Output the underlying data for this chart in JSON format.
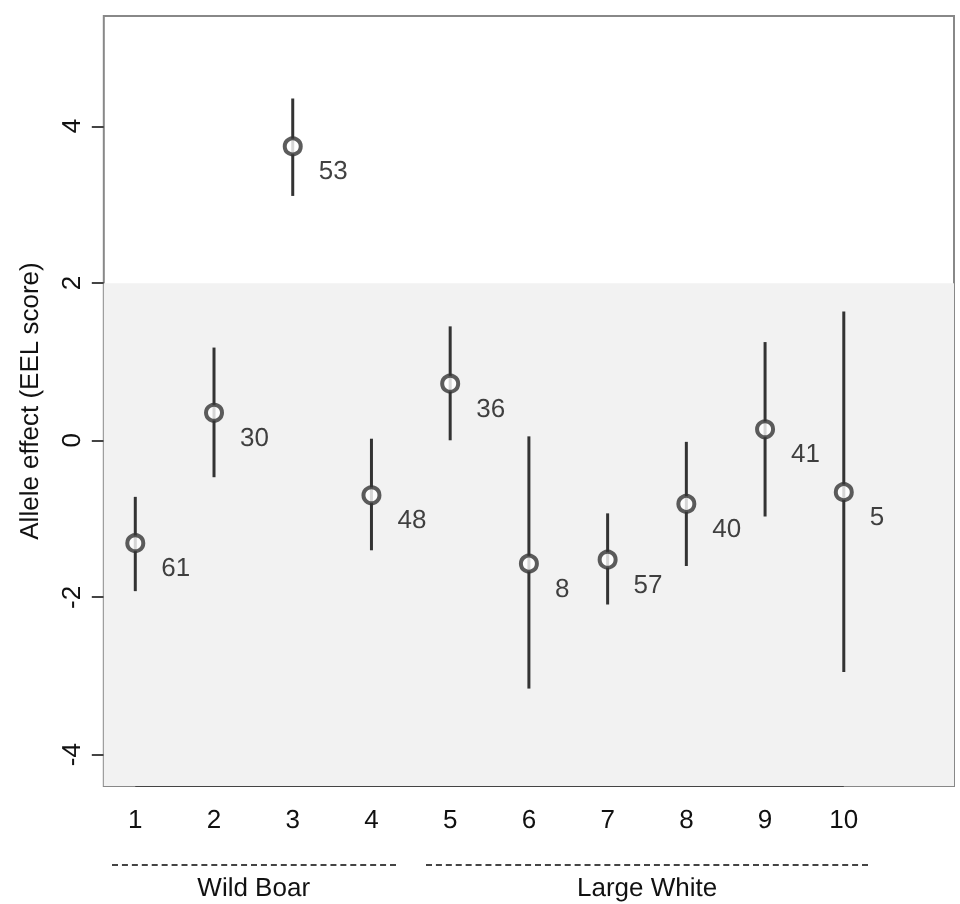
{
  "chart_data": {
    "type": "scatter",
    "ylabel": "Allele effect (EEL score)",
    "x": [
      1,
      2,
      3,
      4,
      5,
      6,
      7,
      8,
      9,
      10
    ],
    "values": [
      -1.31,
      0.35,
      3.74,
      -0.7,
      0.72,
      -1.57,
      -1.52,
      -0.81,
      0.14,
      -0.66
    ],
    "errors": [
      [
        -1.92,
        -0.72
      ],
      [
        -0.47,
        1.18
      ],
      [
        3.11,
        4.35
      ],
      [
        -1.4,
        0.02
      ],
      [
        0,
        1.45
      ],
      [
        -3.16,
        0.05
      ],
      [
        -2.09,
        -0.93
      ],
      [
        -1.6,
        -0.02
      ],
      [
        -0.97,
        1.25
      ],
      [
        -2.95,
        1.64
      ]
    ],
    "color": "#333333",
    "marker": "circle",
    "xlim": [
      0.6,
      11.4
    ],
    "xticks": [
      1,
      2,
      3,
      4,
      5,
      6,
      7,
      8,
      9,
      10
    ],
    "ylim": [
      -4.4,
      5.4
    ],
    "yticks": [
      -4,
      -2,
      0,
      2,
      4
    ],
    "bands": [
      {
        "axis": "y",
        "from": -4.4,
        "to": 2,
        "color": "#f2f2f2"
      }
    ],
    "annotations": [
      {
        "text": "61",
        "x": 1,
        "y": -1.31
      },
      {
        "text": "30",
        "x": 2,
        "y": 0.35
      },
      {
        "text": "53",
        "x": 3,
        "y": 3.74
      },
      {
        "text": "48",
        "x": 4,
        "y": -0.7
      },
      {
        "text": "36",
        "x": 5,
        "y": 0.72
      },
      {
        "text": "8",
        "x": 6,
        "y": -1.57
      },
      {
        "text": "57",
        "x": 7,
        "y": -1.52
      },
      {
        "text": "40",
        "x": 8,
        "y": -0.81
      },
      {
        "text": "41",
        "x": 9,
        "y": 0.14
      },
      {
        "text": "5",
        "x": 10,
        "y": -0.66
      },
      "Wild Boar",
      "Large White"
    ],
    "grid": false
  }
}
